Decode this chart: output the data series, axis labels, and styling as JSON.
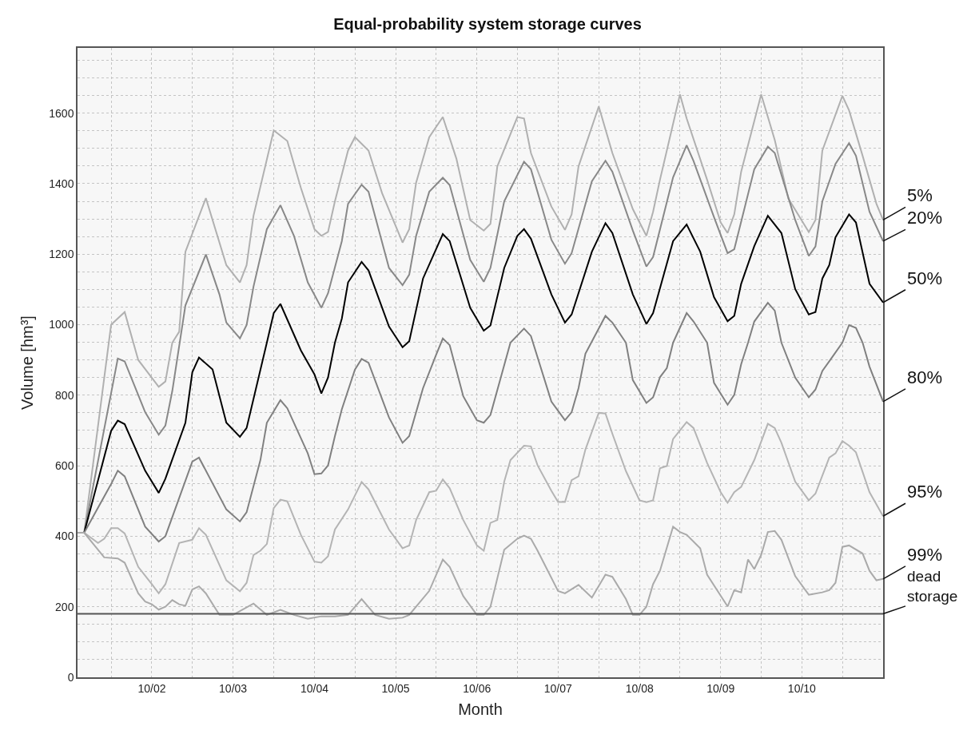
{
  "chart_data": {
    "type": "line",
    "title": "Equal-probability system storage curves",
    "xlabel": "Month",
    "ylabel": "Volume [hm³]",
    "xlim": [
      "2001-11",
      "2011-10"
    ],
    "ylim": [
      0,
      1785
    ],
    "xticks": [
      {
        "value": "2002-04",
        "label": null
      },
      {
        "value": "2002-10",
        "label": "10/02"
      },
      {
        "value": "2003-04",
        "label": null
      },
      {
        "value": "2003-10",
        "label": "10/03"
      },
      {
        "value": "2004-04",
        "label": null
      },
      {
        "value": "2004-10",
        "label": "10/04"
      },
      {
        "value": "2005-04",
        "label": null
      },
      {
        "value": "2005-10",
        "label": "10/05"
      },
      {
        "value": "2006-04",
        "label": null
      },
      {
        "value": "2006-10",
        "label": "10/06"
      },
      {
        "value": "2007-04",
        "label": null
      },
      {
        "value": "2007-10",
        "label": "10/07"
      },
      {
        "value": "2008-04",
        "label": null
      },
      {
        "value": "2008-10",
        "label": "10/08"
      },
      {
        "value": "2009-04",
        "label": null
      },
      {
        "value": "2009-10",
        "label": "10/09"
      },
      {
        "value": "2010-04",
        "label": null
      },
      {
        "value": "2010-10",
        "label": "10/10"
      },
      {
        "value": "2011-04",
        "label": null
      }
    ],
    "yticks": [
      0,
      {
        "value": 50,
        "label": null
      },
      {
        "value": 100,
        "label": null
      },
      {
        "value": 150,
        "label": null
      },
      200,
      {
        "value": 250,
        "label": null
      },
      {
        "value": 300,
        "label": null
      },
      {
        "value": 350,
        "label": null
      },
      400,
      {
        "value": 450,
        "label": null
      },
      {
        "value": 500,
        "label": null
      },
      {
        "value": 550,
        "label": null
      },
      600,
      {
        "value": 650,
        "label": null
      },
      {
        "value": 700,
        "label": null
      },
      {
        "value": 750,
        "label": null
      },
      800,
      {
        "value": 850,
        "label": null
      },
      {
        "value": 900,
        "label": null
      },
      {
        "value": 950,
        "label": null
      },
      1000,
      {
        "value": 1050,
        "label": null
      },
      {
        "value": 1100,
        "label": null
      },
      {
        "value": 1150,
        "label": null
      },
      1200,
      {
        "value": 1250,
        "label": null
      },
      {
        "value": 1300,
        "label": null
      },
      {
        "value": 1350,
        "label": null
      },
      1400,
      {
        "value": 1450,
        "label": null
      },
      {
        "value": 1500,
        "label": null
      },
      {
        "value": 1550,
        "label": null
      },
      1600,
      {
        "value": 1650,
        "label": null
      },
      {
        "value": 1700,
        "label": null
      },
      {
        "value": 1750,
        "label": null
      }
    ],
    "grid": true,
    "series": [
      {
        "name": "5%",
        "color": "#b0b0b0",
        "x": [
          "2001-11",
          "2001-12",
          "2002-04",
          "2002-06",
          "2002-08",
          "2002-11",
          "2002-12",
          "2003-01",
          "2003-02",
          "2003-03",
          "2003-06",
          "2003-09",
          "2003-11",
          "2003-12",
          "2004-01",
          "2004-04",
          "2004-06",
          "2004-08",
          "2004-10",
          "2004-11",
          "2004-12",
          "2005-01",
          "2005-03",
          "2005-04",
          "2005-06",
          "2005-08",
          "2005-11",
          "2005-12",
          "2006-01",
          "2006-03",
          "2006-05",
          "2006-07",
          "2006-09",
          "2006-11",
          "2006-12",
          "2007-01",
          "2007-04",
          "2007-05",
          "2007-06",
          "2007-09",
          "2007-11",
          "2007-12",
          "2008-01",
          "2008-04",
          "2008-06",
          "2008-09",
          "2008-11",
          "2008-12",
          "2009-01",
          "2009-04",
          "2009-05",
          "2009-08",
          "2009-10",
          "2009-11",
          "2009-12",
          "2010-01",
          "2010-04",
          "2010-06",
          "2010-08",
          "2010-11",
          "2010-12",
          "2011-01",
          "2011-04",
          "2011-05",
          "2011-07",
          "2011-09",
          "2011-10"
        ],
        "values": [
          410,
          410,
          1000,
          1036,
          900,
          824,
          839,
          949,
          980,
          1207,
          1359,
          1169,
          1120,
          1169,
          1309,
          1551,
          1521,
          1388,
          1271,
          1252,
          1263,
          1350,
          1494,
          1532,
          1494,
          1373,
          1233,
          1271,
          1403,
          1532,
          1589,
          1471,
          1297,
          1267,
          1286,
          1449,
          1589,
          1585,
          1487,
          1335,
          1269,
          1313,
          1449,
          1619,
          1487,
          1328,
          1252,
          1320,
          1411,
          1653,
          1585,
          1411,
          1290,
          1260,
          1313,
          1434,
          1653,
          1524,
          1358,
          1263,
          1297,
          1494,
          1649,
          1608,
          1479,
          1343,
          1297
        ]
      },
      {
        "name": "20%",
        "color": "#888888",
        "x": [
          "2001-11",
          "2001-12",
          "2002-05",
          "2002-06",
          "2002-09",
          "2002-11",
          "2002-12",
          "2003-01",
          "2003-03",
          "2003-06",
          "2003-08",
          "2003-09",
          "2003-11",
          "2003-12",
          "2004-01",
          "2004-03",
          "2004-05",
          "2004-07",
          "2004-09",
          "2004-11",
          "2004-12",
          "2005-02",
          "2005-03",
          "2005-05",
          "2005-06",
          "2005-09",
          "2005-11",
          "2005-12",
          "2006-01",
          "2006-03",
          "2006-05",
          "2006-06",
          "2006-09",
          "2006-11",
          "2006-12",
          "2007-02",
          "2007-05",
          "2007-06",
          "2007-09",
          "2007-11",
          "2007-12",
          "2008-03",
          "2008-05",
          "2008-06",
          "2008-09",
          "2008-11",
          "2008-12",
          "2009-03",
          "2009-05",
          "2009-06",
          "2009-09",
          "2009-11",
          "2009-12",
          "2010-03",
          "2010-05",
          "2010-06",
          "2010-09",
          "2010-11",
          "2010-12",
          "2011-01",
          "2011-03",
          "2011-05",
          "2011-06",
          "2011-08",
          "2011-10"
        ],
        "values": [
          410,
          410,
          904,
          896,
          752,
          688,
          714,
          812,
          1055,
          1199,
          1086,
          1006,
          961,
          999,
          1108,
          1271,
          1339,
          1252,
          1120,
          1048,
          1089,
          1237,
          1343,
          1397,
          1377,
          1161,
          1112,
          1142,
          1252,
          1377,
          1417,
          1396,
          1184,
          1122,
          1161,
          1350,
          1462,
          1441,
          1241,
          1173,
          1203,
          1407,
          1465,
          1434,
          1267,
          1165,
          1192,
          1418,
          1509,
          1464,
          1305,
          1203,
          1214,
          1441,
          1505,
          1487,
          1297,
          1195,
          1222,
          1350,
          1456,
          1515,
          1479,
          1320,
          1237
        ]
      },
      {
        "name": "50%",
        "color": "#000000",
        "x": [
          "2001-11",
          "2001-12",
          "2002-04",
          "2002-05",
          "2002-06",
          "2002-09",
          "2002-11",
          "2002-12",
          "2003-03",
          "2003-04",
          "2003-05",
          "2003-07",
          "2003-09",
          "2003-11",
          "2003-12",
          "2004-03",
          "2004-04",
          "2004-05",
          "2004-08",
          "2004-10",
          "2004-11",
          "2004-12",
          "2005-01",
          "2005-02",
          "2005-03",
          "2005-05",
          "2005-06",
          "2005-09",
          "2005-11",
          "2005-12",
          "2006-02",
          "2006-05",
          "2006-06",
          "2006-09",
          "2006-11",
          "2006-12",
          "2007-02",
          "2007-04",
          "2007-05",
          "2007-06",
          "2007-09",
          "2007-11",
          "2007-12",
          "2008-03",
          "2008-05",
          "2008-06",
          "2008-09",
          "2008-11",
          "2008-12",
          "2009-03",
          "2009-05",
          "2009-07",
          "2009-09",
          "2009-11",
          "2009-12",
          "2010-01",
          "2010-03",
          "2010-05",
          "2010-07",
          "2010-09",
          "2010-11",
          "2010-12",
          "2011-01",
          "2011-02",
          "2011-03",
          "2011-05",
          "2011-06",
          "2011-08",
          "2011-10"
        ],
        "values": [
          410,
          410,
          699,
          728,
          718,
          586,
          523,
          563,
          722,
          865,
          907,
          873,
          722,
          682,
          707,
          949,
          1033,
          1059,
          927,
          859,
          805,
          850,
          949,
          1017,
          1120,
          1178,
          1154,
          995,
          936,
          953,
          1131,
          1257,
          1237,
          1048,
          983,
          998,
          1161,
          1252,
          1271,
          1244,
          1086,
          1006,
          1029,
          1207,
          1288,
          1260,
          1086,
          1002,
          1033,
          1237,
          1284,
          1207,
          1078,
          1010,
          1025,
          1116,
          1223,
          1309,
          1260,
          1101,
          1029,
          1036,
          1131,
          1169,
          1248,
          1313,
          1290,
          1116,
          1063
        ]
      },
      {
        "name": "80%",
        "color": "#808080",
        "x": [
          "2001-11",
          "2001-12",
          "2002-04",
          "2002-05",
          "2002-06",
          "2002-09",
          "2002-11",
          "2002-12",
          "2003-04",
          "2003-05",
          "2003-09",
          "2003-11",
          "2003-12",
          "2004-02",
          "2004-03",
          "2004-05",
          "2004-06",
          "2004-09",
          "2004-10",
          "2004-11",
          "2004-12",
          "2005-01",
          "2005-02",
          "2005-04",
          "2005-05",
          "2005-06",
          "2005-09",
          "2005-11",
          "2005-12",
          "2006-02",
          "2006-04",
          "2006-05",
          "2006-06",
          "2006-08",
          "2006-10",
          "2006-11",
          "2006-12",
          "2007-03",
          "2007-05",
          "2007-06",
          "2007-09",
          "2007-11",
          "2007-12",
          "2008-01",
          "2008-02",
          "2008-05",
          "2008-06",
          "2008-08",
          "2008-09",
          "2008-11",
          "2008-12",
          "2009-01",
          "2009-02",
          "2009-03",
          "2009-05",
          "2009-06",
          "2009-08",
          "2009-09",
          "2009-11",
          "2009-12",
          "2010-01",
          "2010-02",
          "2010-03",
          "2010-05",
          "2010-06",
          "2010-07",
          "2010-09",
          "2010-11",
          "2010-12",
          "2011-01",
          "2011-02",
          "2011-04",
          "2011-05",
          "2011-06",
          "2011-07",
          "2011-08",
          "2011-10"
        ],
        "values": [
          410,
          410,
          548,
          586,
          570,
          427,
          385,
          400,
          612,
          623,
          476,
          442,
          468,
          616,
          722,
          786,
          763,
          635,
          576,
          578,
          601,
          684,
          760,
          873,
          903,
          892,
          737,
          665,
          684,
          820,
          915,
          961,
          942,
          797,
          729,
          722,
          744,
          949,
          989,
          968,
          782,
          729,
          752,
          820,
          918,
          1025,
          1006,
          949,
          843,
          778,
          794,
          851,
          877,
          949,
          1033,
          1009,
          949,
          835,
          773,
          801,
          888,
          949,
          1009,
          1062,
          1040,
          949,
          850,
          794,
          816,
          869,
          896,
          949,
          999,
          991,
          949,
          881,
          782
        ]
      },
      {
        "name": "95%",
        "color": "#b4b4b4",
        "x": [
          "2001-11",
          "2001-12",
          "2002-02",
          "2002-03",
          "2002-04",
          "2002-05",
          "2002-06",
          "2002-08",
          "2002-10",
          "2002-11",
          "2002-12",
          "2003-02",
          "2003-04",
          "2003-05",
          "2003-06",
          "2003-09",
          "2003-11",
          "2003-12",
          "2004-01",
          "2004-02",
          "2004-03",
          "2004-04",
          "2004-05",
          "2004-06",
          "2004-08",
          "2004-10",
          "2004-11",
          "2004-12",
          "2005-01",
          "2005-03",
          "2005-05",
          "2005-06",
          "2005-09",
          "2005-11",
          "2005-12",
          "2006-01",
          "2006-03",
          "2006-04",
          "2006-05",
          "2006-06",
          "2006-08",
          "2006-10",
          "2006-11",
          "2006-12",
          "2007-01",
          "2007-02",
          "2007-03",
          "2007-05",
          "2007-06",
          "2007-07",
          "2007-09",
          "2007-10",
          "2007-11",
          "2007-12",
          "2008-01",
          "2008-02",
          "2008-04",
          "2008-05",
          "2008-06",
          "2008-08",
          "2008-10",
          "2008-11",
          "2008-12",
          "2009-01",
          "2009-02",
          "2009-03",
          "2009-05",
          "2009-06",
          "2009-08",
          "2009-10",
          "2009-11",
          "2009-12",
          "2010-01",
          "2010-03",
          "2010-05",
          "2010-06",
          "2010-07",
          "2010-09",
          "2010-11",
          "2010-12",
          "2011-02",
          "2011-03",
          "2011-04",
          "2011-05",
          "2011-06",
          "2011-08",
          "2011-10"
        ],
        "values": [
          410,
          410,
          381,
          393,
          423,
          423,
          408,
          313,
          264,
          238,
          264,
          381,
          390,
          423,
          404,
          275,
          244,
          268,
          347,
          359,
          378,
          480,
          504,
          499,
          404,
          328,
          325,
          343,
          419,
          476,
          554,
          533,
          419,
          366,
          374,
          446,
          525,
          529,
          561,
          536,
          446,
          374,
          359,
          438,
          446,
          555,
          616,
          657,
          655,
          601,
          529,
          497,
          497,
          559,
          570,
          646,
          750,
          748,
          691,
          585,
          502,
          497,
          502,
          593,
          599,
          676,
          724,
          707,
          608,
          525,
          495,
          525,
          540,
          616,
          719,
          707,
          665,
          555,
          502,
          521,
          623,
          635,
          670,
          657,
          638,
          525,
          457
        ]
      },
      {
        "name": "99%",
        "color": "#aaaaaa",
        "x": [
          "2001-11",
          "2001-12",
          "2002-03",
          "2002-05",
          "2002-06",
          "2002-08",
          "2002-09",
          "2002-10",
          "2002-11",
          "2002-12",
          "2003-01",
          "2003-02",
          "2003-03",
          "2003-04",
          "2003-05",
          "2003-06",
          "2003-08",
          "2003-10",
          "2004-01",
          "2004-03",
          "2004-05",
          "2004-07",
          "2004-09",
          "2004-11",
          "2005-01",
          "2005-03",
          "2005-05",
          "2005-07",
          "2005-09",
          "2005-11",
          "2005-12",
          "2006-03",
          "2006-05",
          "2006-06",
          "2006-08",
          "2006-10",
          "2006-11",
          "2006-12",
          "2007-02",
          "2007-04",
          "2007-05",
          "2007-06",
          "2007-07",
          "2007-10",
          "2007-11",
          "2008-01",
          "2008-03",
          "2008-05",
          "2008-06",
          "2008-08",
          "2008-09",
          "2008-10",
          "2008-11",
          "2008-12",
          "2009-01",
          "2009-03",
          "2009-04",
          "2009-05",
          "2009-07",
          "2009-08",
          "2009-11",
          "2009-12",
          "2010-01",
          "2010-02",
          "2010-03",
          "2010-04",
          "2010-05",
          "2010-06",
          "2010-07",
          "2010-09",
          "2010-11",
          "2011-01",
          "2011-02",
          "2011-03",
          "2011-04",
          "2011-05",
          "2011-07",
          "2011-08",
          "2011-09",
          "2011-10"
        ],
        "values": [
          410,
          410,
          340,
          337,
          325,
          238,
          215,
          207,
          192,
          200,
          219,
          207,
          203,
          249,
          258,
          238,
          177,
          177,
          209,
          177,
          191,
          177,
          166,
          173,
          173,
          177,
          222,
          177,
          166,
          169,
          177,
          245,
          334,
          313,
          230,
          177,
          177,
          200,
          362,
          393,
          402,
          393,
          359,
          245,
          238,
          262,
          226,
          291,
          285,
          222,
          177,
          177,
          200,
          264,
          302,
          427,
          412,
          404,
          366,
          291,
          201,
          247,
          241,
          334,
          307,
          347,
          412,
          415,
          390,
          287,
          234,
          241,
          247,
          268,
          370,
          374,
          351,
          302,
          275,
          279
        ]
      },
      {
        "name": "dead storage",
        "color": "#555555",
        "x": [
          "2001-11",
          "2011-10"
        ],
        "values": [
          180,
          180
        ]
      }
    ]
  }
}
